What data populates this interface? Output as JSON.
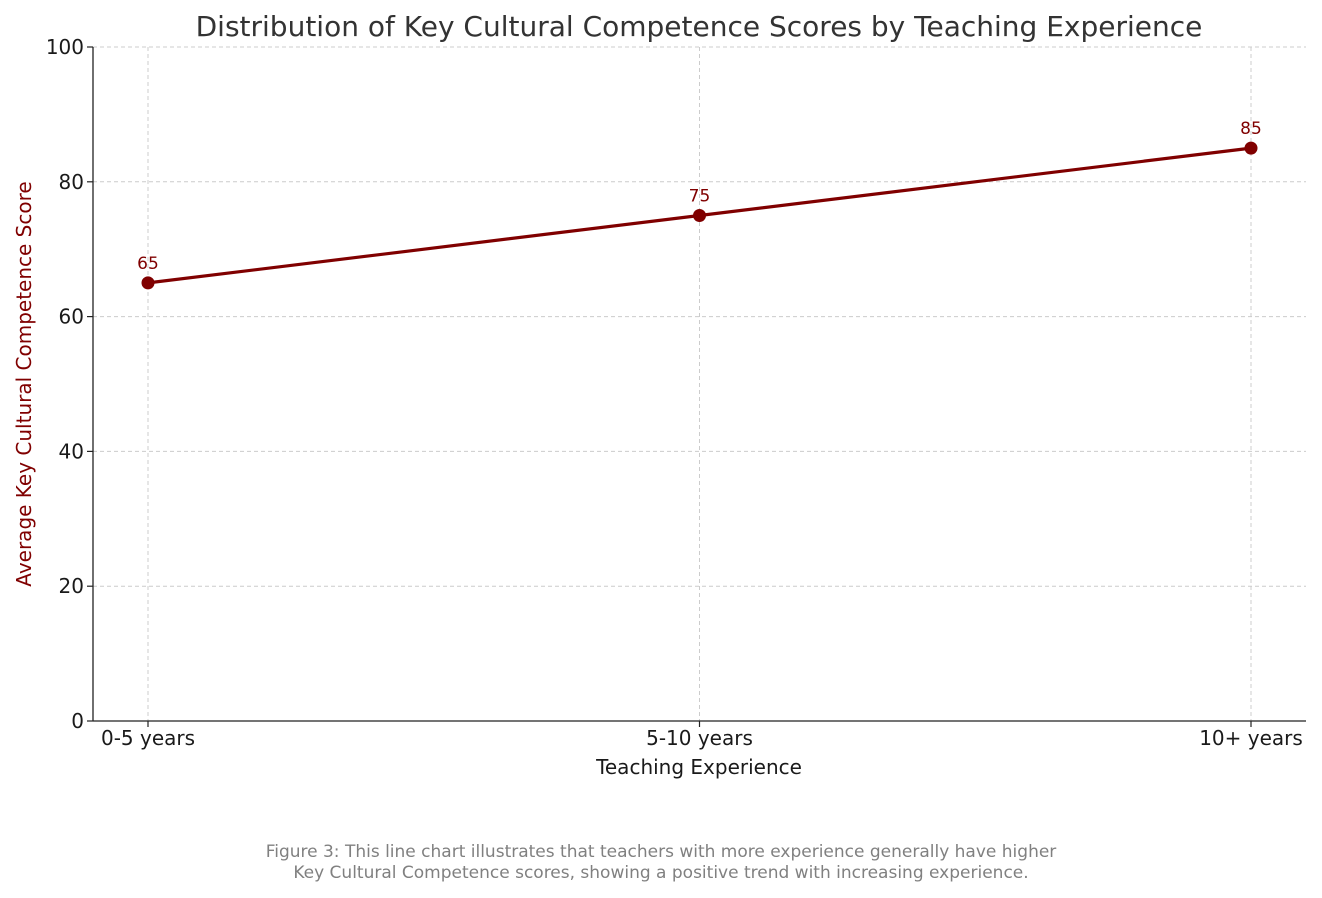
{
  "chart_data": {
    "type": "line",
    "title": "Distribution of Key Cultural Competence Scores by Teaching Experience",
    "xlabel": "Teaching Experience",
    "ylabel": "Average Key Cultural Competence Score",
    "categories": [
      "0-5 years",
      "5-10 years",
      "10+ years"
    ],
    "values": [
      65,
      75,
      85
    ],
    "data_labels": [
      "65",
      "75",
      "85"
    ],
    "ylim": [
      0,
      100
    ],
    "yticks": [
      0,
      20,
      40,
      60,
      80,
      100
    ],
    "ytick_labels": [
      "0",
      "20",
      "40",
      "60",
      "80",
      "100"
    ],
    "grid": true,
    "colors": {
      "line": "#800000",
      "ylabel": "#800000",
      "data_label": "#800000",
      "grid": "#cccccc"
    }
  },
  "caption": {
    "line1": "Figure 3: This line chart illustrates that teachers with more experience generally have higher",
    "line2": "Key Cultural Competence scores, showing a positive trend with increasing experience."
  }
}
